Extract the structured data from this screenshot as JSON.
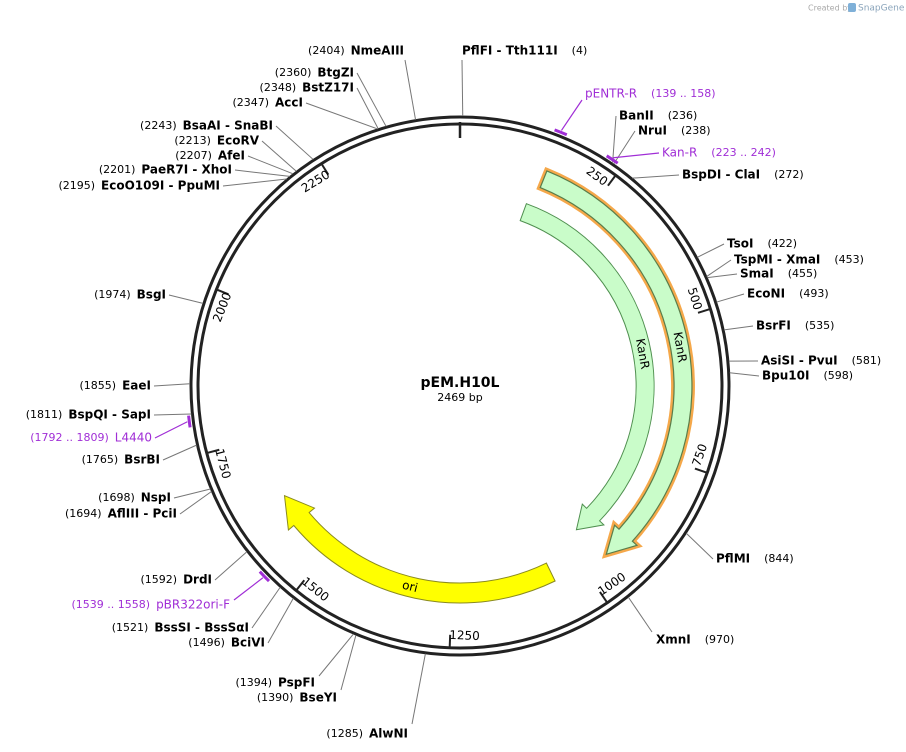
{
  "watermark": {
    "prefix": "Created by",
    "brand": "SnapGene"
  },
  "plasmid": {
    "name": "pEM.H10L",
    "length": {
      "value": 2469,
      "label": "2469 bp"
    }
  },
  "ticks": [
    250,
    500,
    750,
    1000,
    1250,
    1500,
    1750,
    2000,
    2250
  ],
  "sites": [
    {
      "name": "PflFI - Tth111I",
      "position": {
        "value": 4,
        "label": "(4)"
      }
    },
    {
      "name": "BanII",
      "position": {
        "value": 236,
        "label": "(236)"
      }
    },
    {
      "name": "NruI",
      "position": {
        "value": 238,
        "label": "(238)"
      }
    },
    {
      "name": "BspDI - ClaI",
      "position": {
        "value": 272,
        "label": "(272)"
      }
    },
    {
      "name": "TsoI",
      "position": {
        "value": 422,
        "label": "(422)"
      }
    },
    {
      "name": "TspMI - XmaI",
      "position": {
        "value": 453,
        "label": "(453)"
      }
    },
    {
      "name": "SmaI",
      "position": {
        "value": 455,
        "label": "(455)"
      }
    },
    {
      "name": "EcoNI",
      "position": {
        "value": 493,
        "label": "(493)"
      }
    },
    {
      "name": "BsrFI",
      "position": {
        "value": 535,
        "label": "(535)"
      }
    },
    {
      "name": "AsiSI - PvuI",
      "position": {
        "value": 581,
        "label": "(581)"
      }
    },
    {
      "name": "Bpu10I",
      "position": {
        "value": 598,
        "label": "(598)"
      }
    },
    {
      "name": "PflMI",
      "position": {
        "value": 844,
        "label": "(844)"
      }
    },
    {
      "name": "XmnI",
      "position": {
        "value": 970,
        "label": "(970)"
      }
    },
    {
      "name": "AlwNI",
      "position": {
        "value": 1285,
        "label": "(1285)"
      }
    },
    {
      "name": "BseYI",
      "position": {
        "value": 1390,
        "label": "(1390)"
      }
    },
    {
      "name": "PspFI",
      "position": {
        "value": 1394,
        "label": "(1394)"
      }
    },
    {
      "name": "BciVI",
      "position": {
        "value": 1496,
        "label": "(1496)"
      }
    },
    {
      "name": "BssSI - BssSαI",
      "position": {
        "value": 1521,
        "label": "(1521)"
      }
    },
    {
      "name": "DrdI",
      "position": {
        "value": 1592,
        "label": "(1592)"
      }
    },
    {
      "name": "AflIII - PciI",
      "position": {
        "value": 1694,
        "label": "(1694)"
      }
    },
    {
      "name": "NspI",
      "position": {
        "value": 1698,
        "label": "(1698)"
      }
    },
    {
      "name": "BsrBI",
      "position": {
        "value": 1765,
        "label": "(1765)"
      }
    },
    {
      "name": "BspQI - SapI",
      "position": {
        "value": 1811,
        "label": "(1811)"
      }
    },
    {
      "name": "EaeI",
      "position": {
        "value": 1855,
        "label": "(1855)"
      }
    },
    {
      "name": "BsgI",
      "position": {
        "value": 1974,
        "label": "(1974)"
      }
    },
    {
      "name": "EcoO109I - PpuMI",
      "position": {
        "value": 2195,
        "label": "(2195)"
      }
    },
    {
      "name": "PaeR7I - XhoI",
      "position": {
        "value": 2201,
        "label": "(2201)"
      }
    },
    {
      "name": "AfeI",
      "position": {
        "value": 2207,
        "label": "(2207)"
      }
    },
    {
      "name": "EcoRV",
      "position": {
        "value": 2213,
        "label": "(2213)"
      }
    },
    {
      "name": "BsaAI - SnaBI",
      "position": {
        "value": 2243,
        "label": "(2243)"
      }
    },
    {
      "name": "AccI",
      "position": {
        "value": 2347,
        "label": "(2347)"
      }
    },
    {
      "name": "BstZ17I",
      "position": {
        "value": 2348,
        "label": "(2348)"
      }
    },
    {
      "name": "BtgZI",
      "position": {
        "value": 2360,
        "label": "(2360)"
      }
    },
    {
      "name": "NmeAIII",
      "position": {
        "value": 2404,
        "label": "(2404)"
      }
    }
  ],
  "primers": [
    {
      "name": "pENTR-R",
      "range": {
        "start": 139,
        "end": 158,
        "label": "(139 .. 158)"
      }
    },
    {
      "name": "Kan-R",
      "range": {
        "start": 223,
        "end": 242,
        "label": "(223 .. 242)"
      }
    },
    {
      "name": "L4440",
      "range": {
        "start": 1792,
        "end": 1809,
        "label": "(1792 .. 1809)"
      }
    },
    {
      "name": "pBR322ori-F",
      "range": {
        "start": 1539,
        "end": 1558,
        "label": "(1539 .. 1558)"
      }
    }
  ],
  "features": [
    {
      "name": "KanR"
    },
    {
      "name": "KanR"
    },
    {
      "name": "ori"
    }
  ]
}
